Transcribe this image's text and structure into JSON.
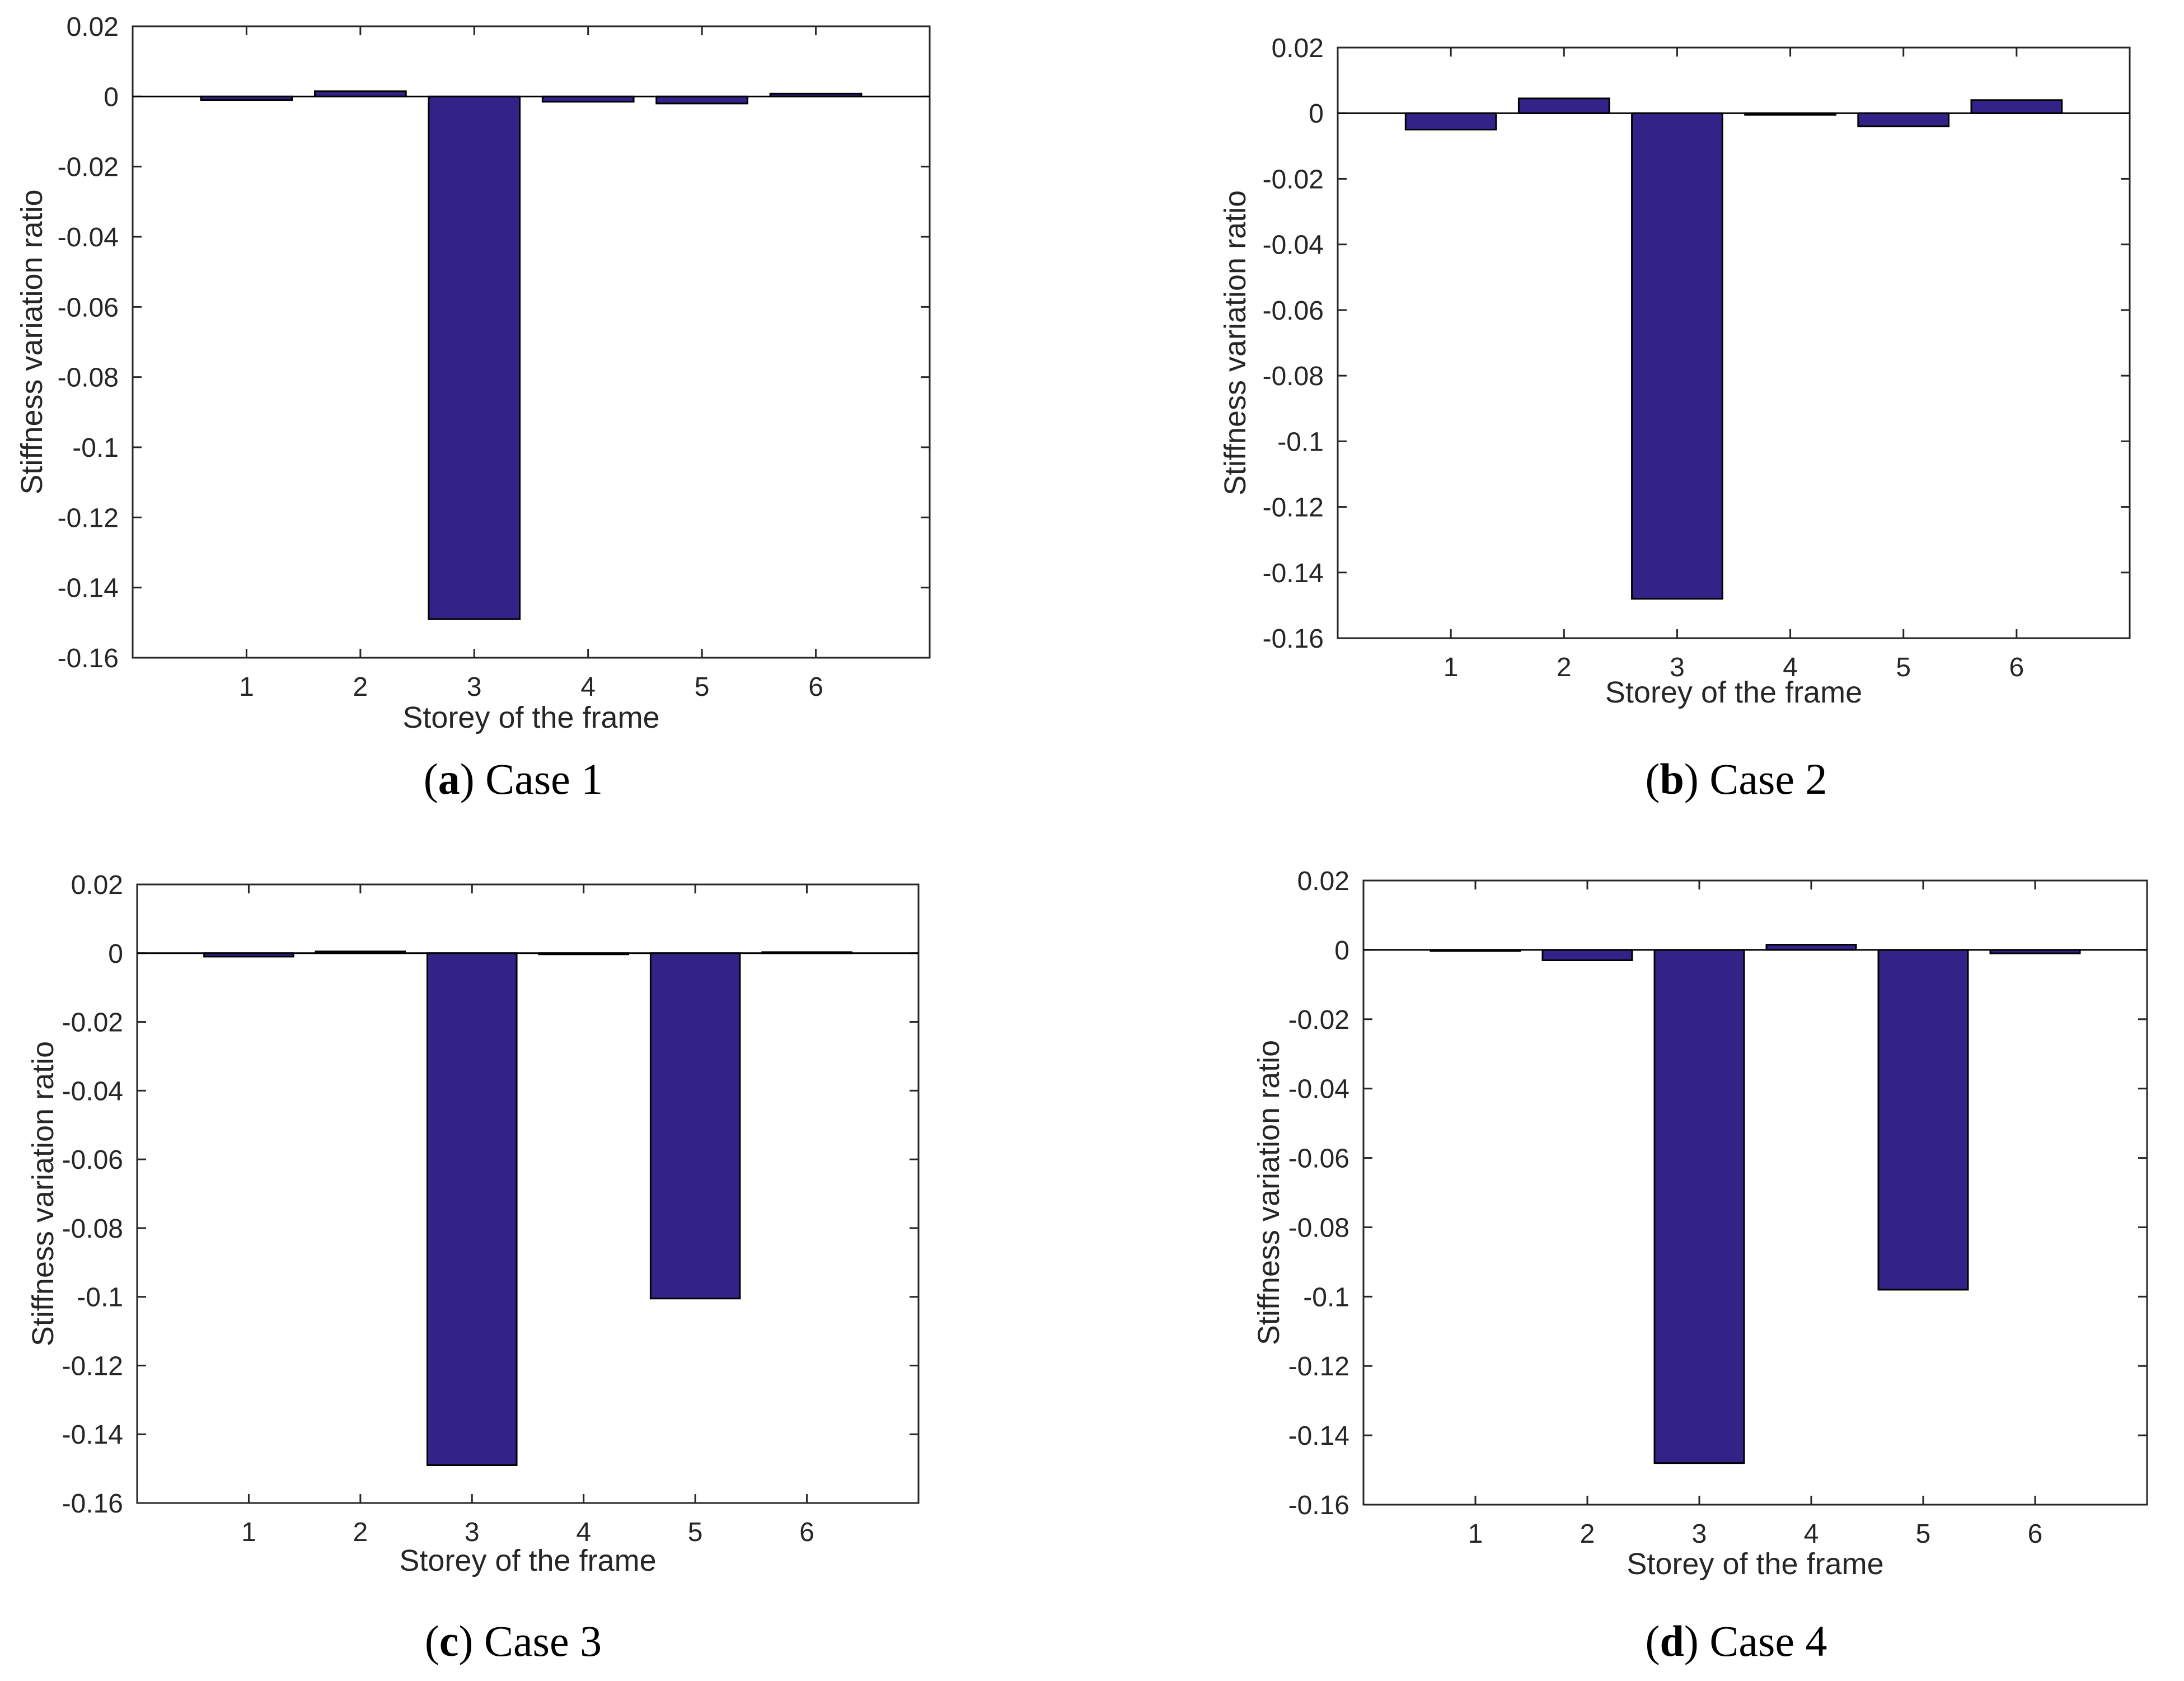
{
  "figure": {
    "bar_color": "#332288",
    "axis_color": "#262626"
  },
  "chart_data": [
    {
      "type": "bar",
      "id": "a",
      "caption_letter": "a",
      "caption_title": "Case 1",
      "categories": [
        "1",
        "2",
        "3",
        "4",
        "5",
        "6"
      ],
      "values": [
        -0.001,
        0.0015,
        -0.149,
        -0.0015,
        -0.002,
        0.0008
      ],
      "xlabel": "Storey of the frame",
      "ylabel": "Stiffness variation ratio",
      "ylim": [
        -0.16,
        0.02
      ],
      "yticks": [
        "0.02",
        "0",
        "-0.02",
        "-0.04",
        "-0.06",
        "-0.08",
        "-0.1",
        "-0.12",
        "-0.14",
        "-0.16"
      ]
    },
    {
      "type": "bar",
      "id": "b",
      "caption_letter": "b",
      "caption_title": "Case 2",
      "categories": [
        "1",
        "2",
        "3",
        "4",
        "5",
        "6"
      ],
      "values": [
        -0.005,
        0.0045,
        -0.148,
        -0.0005,
        -0.004,
        0.004
      ],
      "xlabel": "Storey of the frame",
      "ylabel": "Stiffness variation ratio",
      "ylim": [
        -0.16,
        0.02
      ],
      "yticks": [
        "0.02",
        "0",
        "-0.02",
        "-0.04",
        "-0.06",
        "-0.08",
        "-0.1",
        "-0.12",
        "-0.14",
        "-0.16"
      ]
    },
    {
      "type": "bar",
      "id": "c",
      "caption_letter": "c",
      "caption_title": "Case 3",
      "categories": [
        "1",
        "2",
        "3",
        "4",
        "5",
        "6"
      ],
      "values": [
        -0.001,
        0.0005,
        -0.149,
        0.0,
        -0.1005,
        0.0003
      ],
      "xlabel": "Storey of the frame",
      "ylabel": "Stiffness variation ratio",
      "ylim": [
        -0.16,
        0.02
      ],
      "yticks": [
        "0.02",
        "0",
        "-0.02",
        "-0.04",
        "-0.06",
        "-0.08",
        "-0.1",
        "-0.12",
        "-0.14",
        "-0.16"
      ]
    },
    {
      "type": "bar",
      "id": "d",
      "caption_letter": "d",
      "caption_title": "Case 4",
      "categories": [
        "1",
        "2",
        "3",
        "4",
        "5",
        "6"
      ],
      "values": [
        -0.0003,
        -0.003,
        -0.148,
        0.0015,
        -0.098,
        -0.001
      ],
      "xlabel": "Storey of the frame",
      "ylabel": "Stiffness variation ratio",
      "ylim": [
        -0.16,
        0.02
      ],
      "yticks": [
        "0.02",
        "0",
        "-0.02",
        "-0.04",
        "-0.06",
        "-0.08",
        "-0.1",
        "-0.12",
        "-0.14",
        "-0.16"
      ]
    }
  ]
}
